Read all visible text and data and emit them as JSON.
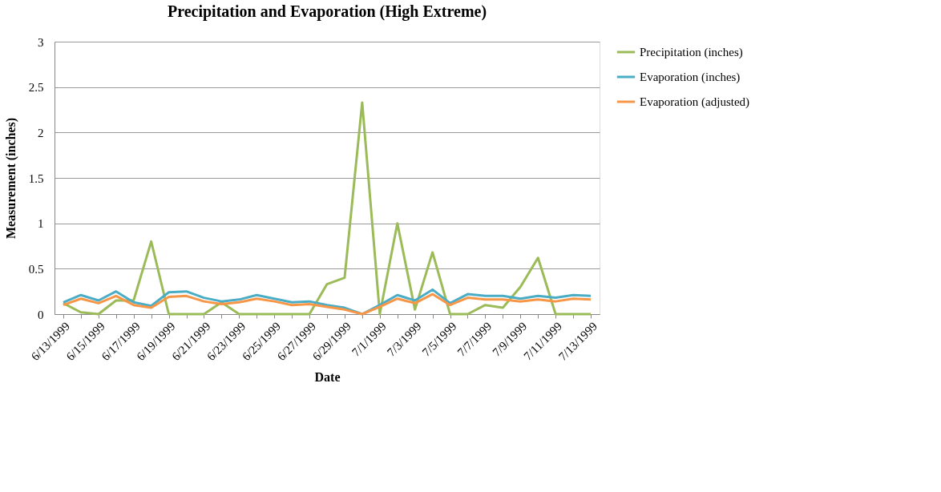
{
  "chart_data": {
    "type": "line",
    "title": "Precipitation and Evaporation (High Extreme)",
    "xlabel": "Date",
    "ylabel": "Measurement (inches)",
    "categories": [
      "6/13/1999",
      null,
      "6/15/1999",
      null,
      "6/17/1999",
      null,
      "6/19/1999",
      null,
      "6/21/1999",
      null,
      "6/23/1999",
      null,
      "6/25/1999",
      null,
      "6/27/1999",
      null,
      "6/29/1999",
      null,
      "7/1/1999",
      null,
      "7/3/1999",
      null,
      "7/5/1999",
      null,
      "7/7/1999",
      null,
      "7/9/1999",
      null,
      "7/11/1999",
      null,
      "7/13/1999"
    ],
    "series": [
      {
        "name": "Precipitation (inches)",
        "color": "#9bbb59",
        "values": [
          0.12,
          0.02,
          0.0,
          0.15,
          0.15,
          0.8,
          0.0,
          0.0,
          0.0,
          0.13,
          0.0,
          0.0,
          0.0,
          0.0,
          0.0,
          0.33,
          0.4,
          2.33,
          0.0,
          1.0,
          0.05,
          0.68,
          0.0,
          0.0,
          0.1,
          0.07,
          0.3,
          0.62,
          0.0,
          0.0,
          0.0
        ]
      },
      {
        "name": "Evaporation (inches)",
        "color": "#4bacc6",
        "values": [
          0.13,
          0.21,
          0.15,
          0.25,
          0.13,
          0.09,
          0.24,
          0.25,
          0.18,
          0.14,
          0.16,
          0.21,
          0.17,
          0.13,
          0.14,
          0.1,
          0.07,
          0.0,
          0.1,
          0.21,
          0.15,
          0.27,
          0.12,
          0.22,
          0.2,
          0.2,
          0.17,
          0.2,
          0.18,
          0.21,
          0.2
        ]
      },
      {
        "name": "Evaporation (adjusted)",
        "color": "#f79646",
        "values": [
          0.1,
          0.17,
          0.12,
          0.2,
          0.1,
          0.07,
          0.19,
          0.2,
          0.14,
          0.11,
          0.13,
          0.17,
          0.14,
          0.1,
          0.11,
          0.08,
          0.05,
          0.0,
          0.08,
          0.17,
          0.12,
          0.22,
          0.1,
          0.18,
          0.16,
          0.16,
          0.14,
          0.16,
          0.14,
          0.17,
          0.16
        ]
      }
    ],
    "ylim": [
      0,
      3
    ],
    "yticks": [
      0,
      0.5,
      1,
      1.5,
      2,
      2.5,
      3
    ],
    "grid": "y",
    "legend": "right",
    "marker": "none",
    "line_style": "solid"
  }
}
